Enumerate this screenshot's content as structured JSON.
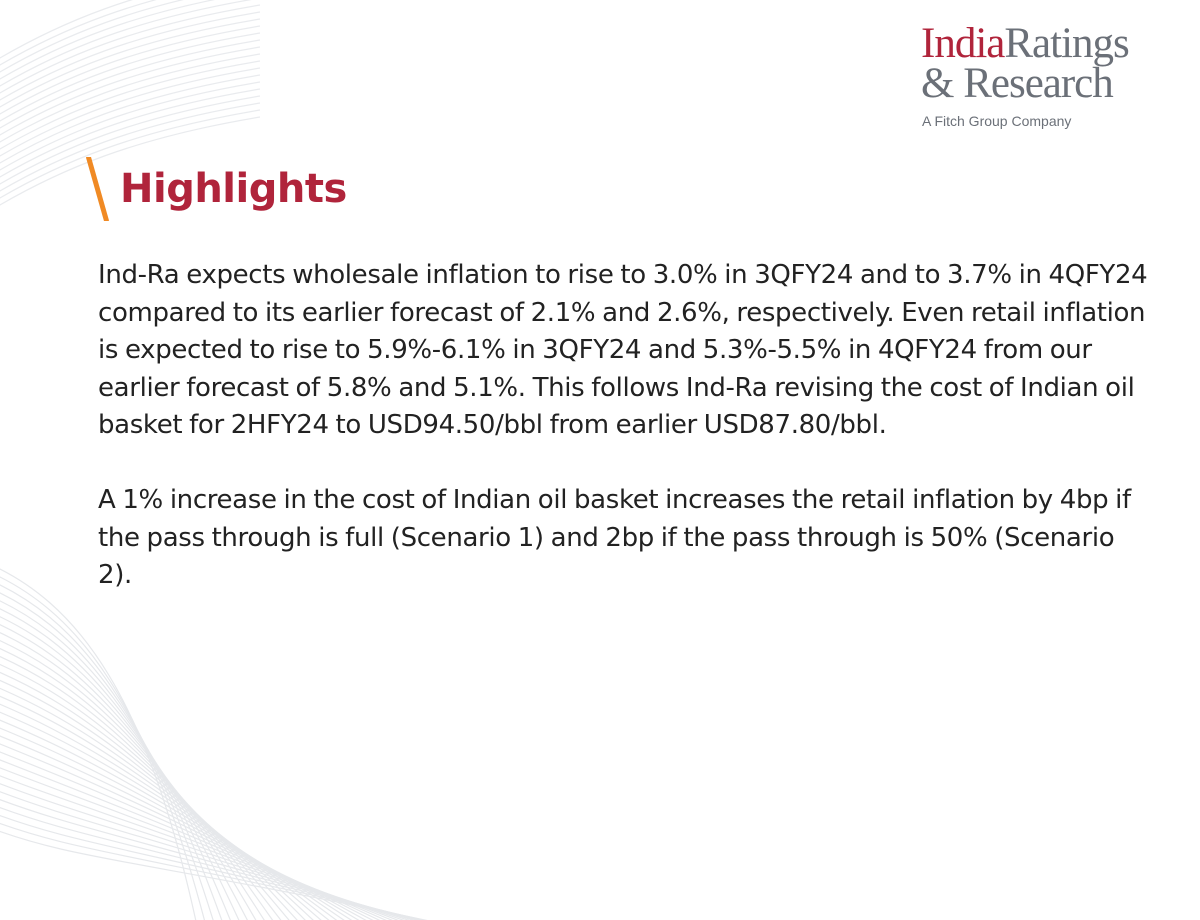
{
  "logo": {
    "line1_part1": "India",
    "line1_part2": "Ratings",
    "line2": "& Research",
    "tagline": "A Fitch Group Company"
  },
  "heading": {
    "title": "Highlights"
  },
  "paragraphs": [
    "Ind-Ra expects wholesale inflation to rise to 3.0% in 3QFY24 and to 3.7% in 4QFY24 compared to its earlier forecast of 2.1% and 2.6%, respectively. Even retail inflation is expected to rise to 5.9%-6.1% in 3QFY24 and 5.3%-5.5% in 4QFY24 from our earlier forecast of 5.8% and 5.1%. This follows Ind-Ra revising the cost of Indian oil basket for 2HFY24 to USD94.50/bbl from earlier USD87.80/bbl.",
    "A 1% increase in the cost of Indian oil basket increases the retail inflation by 4bp if the pass through is full (Scenario 1) and 2bp if the pass through is 50% (Scenario 2)."
  ],
  "colors": {
    "brand_red": "#b0243b",
    "brand_grey": "#6b7078",
    "accent_orange": "#f08a24",
    "body_text": "#222222"
  }
}
